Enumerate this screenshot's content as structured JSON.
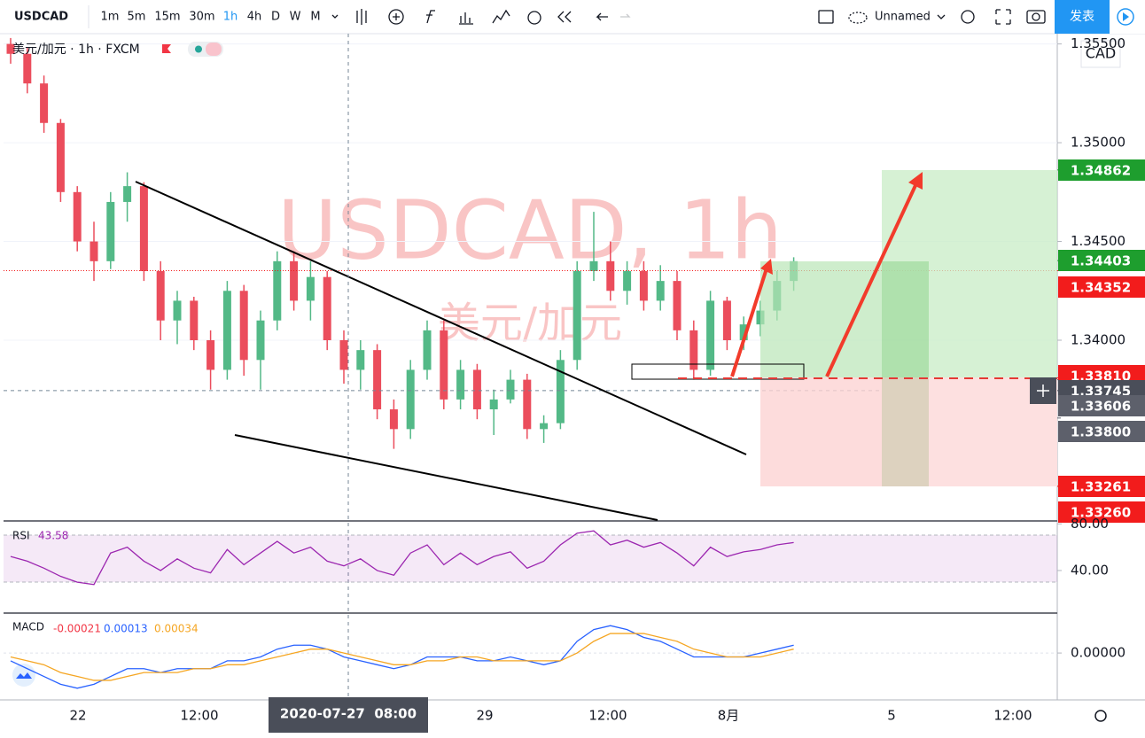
{
  "toolbar": {
    "symbol": "USDCAD",
    "intervals": [
      "1m",
      "5m",
      "15m",
      "30m",
      "1h",
      "4h",
      "D",
      "W",
      "M"
    ],
    "layout_name": "Unnamed",
    "publish": "发表"
  },
  "legend": {
    "title": "美元/加元 · 1h · FXCM"
  },
  "watermark": {
    "symbol": "USDCAD, 1h",
    "name": "美元/加元"
  },
  "currency": "CAD",
  "chart_data": [
    {
      "type": "candlestick",
      "up_color": "#53b987",
      "down_color": "#eb4d5c",
      "candles": [
        [
          1.355,
          1.3553,
          1.354,
          1.3545
        ],
        [
          1.3545,
          1.3548,
          1.3525,
          1.353
        ],
        [
          1.353,
          1.3534,
          1.3505,
          1.351
        ],
        [
          1.351,
          1.3512,
          1.347,
          1.3475
        ],
        [
          1.3475,
          1.3478,
          1.3445,
          1.345
        ],
        [
          1.345,
          1.346,
          1.343,
          1.344
        ],
        [
          1.344,
          1.3475,
          1.3436,
          1.347
        ],
        [
          1.347,
          1.3485,
          1.346,
          1.3478
        ],
        [
          1.3478,
          1.348,
          1.343,
          1.3435
        ],
        [
          1.3435,
          1.344,
          1.34,
          1.341
        ],
        [
          1.341,
          1.3425,
          1.3398,
          1.342
        ],
        [
          1.342,
          1.3422,
          1.3395,
          1.34
        ],
        [
          1.34,
          1.3405,
          1.3375,
          1.3385
        ],
        [
          1.3385,
          1.343,
          1.338,
          1.3425
        ],
        [
          1.3425,
          1.3428,
          1.3382,
          1.339
        ],
        [
          1.339,
          1.3415,
          1.3375,
          1.341
        ],
        [
          1.341,
          1.3445,
          1.3405,
          1.344
        ],
        [
          1.344,
          1.3445,
          1.3415,
          1.342
        ],
        [
          1.342,
          1.344,
          1.341,
          1.3432
        ],
        [
          1.3432,
          1.3435,
          1.3395,
          1.34
        ],
        [
          1.34,
          1.3405,
          1.3378,
          1.3385
        ],
        [
          1.3385,
          1.34,
          1.3375,
          1.3395
        ],
        [
          1.3395,
          1.3398,
          1.336,
          1.3365
        ],
        [
          1.3365,
          1.337,
          1.3345,
          1.3355
        ],
        [
          1.3355,
          1.339,
          1.335,
          1.3385
        ],
        [
          1.3385,
          1.341,
          1.338,
          1.3405
        ],
        [
          1.3405,
          1.341,
          1.3365,
          1.337
        ],
        [
          1.337,
          1.339,
          1.3365,
          1.3385
        ],
        [
          1.3385,
          1.3388,
          1.336,
          1.3365
        ],
        [
          1.3365,
          1.3375,
          1.3352,
          1.337
        ],
        [
          1.337,
          1.3385,
          1.3368,
          1.338
        ],
        [
          1.338,
          1.3383,
          1.335,
          1.3355
        ],
        [
          1.3355,
          1.3362,
          1.3348,
          1.3358
        ],
        [
          1.3358,
          1.3395,
          1.3355,
          1.339
        ],
        [
          1.339,
          1.344,
          1.3385,
          1.3435
        ],
        [
          1.3435,
          1.3465,
          1.343,
          1.344
        ],
        [
          1.344,
          1.345,
          1.342,
          1.3425
        ],
        [
          1.3425,
          1.344,
          1.3418,
          1.3435
        ],
        [
          1.3435,
          1.344,
          1.3415,
          1.342
        ],
        [
          1.342,
          1.3438,
          1.3415,
          1.343
        ],
        [
          1.343,
          1.3435,
          1.34,
          1.3405
        ],
        [
          1.3405,
          1.341,
          1.338,
          1.3385
        ],
        [
          1.3385,
          1.3425,
          1.3382,
          1.342
        ],
        [
          1.342,
          1.3422,
          1.3395,
          1.34
        ],
        [
          1.34,
          1.3412,
          1.3395,
          1.3408
        ],
        [
          1.3408,
          1.342,
          1.3402,
          1.3415
        ],
        [
          1.3415,
          1.3435,
          1.341,
          1.343
        ],
        [
          1.343,
          1.3442,
          1.3425,
          1.344
        ]
      ],
      "ylim": [
        1.33085,
        1.35552
      ],
      "yticks": [
        {
          "value": 1.355,
          "label": "1.35500"
        },
        {
          "value": 1.35,
          "label": "1.35000"
        },
        {
          "value": 1.345,
          "label": "1.34500"
        },
        {
          "value": 1.34,
          "label": "1.34000"
        }
      ],
      "grid": true,
      "price_labels": [
        {
          "value": 1.34862,
          "label": "1.34862",
          "color": "#1e9e2e"
        },
        {
          "value": 1.34403,
          "label": "1.34403",
          "color": "#1e9e2e"
        },
        {
          "value": 1.34352,
          "label": "1.34352",
          "color": "#f21c1c"
        },
        {
          "value": 1.3381,
          "label": "1.33810",
          "color": "#f21c1c"
        },
        {
          "value": 1.33745,
          "label": "1.33745",
          "color": "#4a4e59"
        },
        {
          "value": 1.33606,
          "label": "1.33606",
          "color": "#5d606b"
        },
        {
          "value": 1.338,
          "label": "1.33800",
          "color": "#5d606b"
        },
        {
          "value": 1.33261,
          "label": "1.33261",
          "color": "#f21c1c"
        },
        {
          "value": 1.3326,
          "label": "1.33260",
          "color": "#f21c1c"
        }
      ]
    },
    {
      "type": "line",
      "title": "RSI",
      "value_label": "43.58",
      "color": "#9c27b0",
      "values": [
        52,
        48,
        42,
        35,
        30,
        28,
        55,
        60,
        48,
        40,
        50,
        42,
        38,
        58,
        45,
        55,
        65,
        55,
        60,
        48,
        44,
        50,
        40,
        36,
        55,
        62,
        45,
        55,
        45,
        52,
        56,
        42,
        48,
        62,
        72,
        74,
        62,
        66,
        60,
        64,
        55,
        44,
        60,
        52,
        56,
        58,
        62,
        64
      ],
      "ylim": [
        5,
        81
      ],
      "yticks": [
        {
          "value": 80,
          "label": "80.00"
        },
        {
          "value": 40,
          "label": "40.00"
        }
      ]
    },
    {
      "type": "line",
      "title": "MACD",
      "legend_values": [
        {
          "text": "-0.00021",
          "color": "#f23645"
        },
        {
          "text": "0.00013",
          "color": "#2962ff"
        },
        {
          "text": "0.00034",
          "color": "#f5a623"
        }
      ],
      "series": [
        {
          "color": "#2962ff",
          "values": [
            -0.0002,
            -0.0004,
            -0.0006,
            -0.0008,
            -0.0009,
            -0.0008,
            -0.0006,
            -0.0004,
            -0.0004,
            -0.0005,
            -0.0004,
            -0.0004,
            -0.0004,
            -0.0002,
            -0.0002,
            -0.0001,
            0.0001,
            0.0002,
            0.0002,
            0.0001,
            -0.0001,
            -0.0002,
            -0.0003,
            -0.0004,
            -0.0003,
            -0.0001,
            -0.0001,
            -0.0001,
            -0.0002,
            -0.0002,
            -0.0001,
            -0.0002,
            -0.0003,
            -0.0002,
            0.0003,
            0.0006,
            0.0007,
            0.0006,
            0.0004,
            0.0003,
            0.0001,
            -0.0001,
            -0.0001,
            -0.0001,
            -0.0001,
            0,
            0.0001,
            0.0002
          ]
        },
        {
          "color": "#f5a623",
          "values": [
            -0.0001,
            -0.0002,
            -0.0003,
            -0.0005,
            -0.0006,
            -0.0007,
            -0.0007,
            -0.0006,
            -0.0005,
            -0.0005,
            -0.0005,
            -0.0004,
            -0.0004,
            -0.0003,
            -0.0003,
            -0.0002,
            -0.0001,
            0,
            0.0001,
            0.0001,
            0,
            -0.0001,
            -0.0002,
            -0.0003,
            -0.0003,
            -0.0002,
            -0.0002,
            -0.0001,
            -0.0001,
            -0.0002,
            -0.0002,
            -0.0002,
            -0.0002,
            -0.0002,
            0,
            0.0003,
            0.0005,
            0.0005,
            0.0005,
            0.0004,
            0.0003,
            0.0001,
            0,
            -0.0001,
            -0.0001,
            -0.0001,
            0,
            0.0001
          ]
        }
      ],
      "ylim": [
        -0.0012,
        0.001
      ],
      "yticks": [
        {
          "value": 0,
          "label": "0.00000"
        }
      ]
    }
  ],
  "time_axis": {
    "labels": [
      "22",
      "12:00",
      "29",
      "12:00",
      "8月",
      "5",
      "12:00"
    ],
    "cursor_label": "2020-07-27  08:00"
  }
}
